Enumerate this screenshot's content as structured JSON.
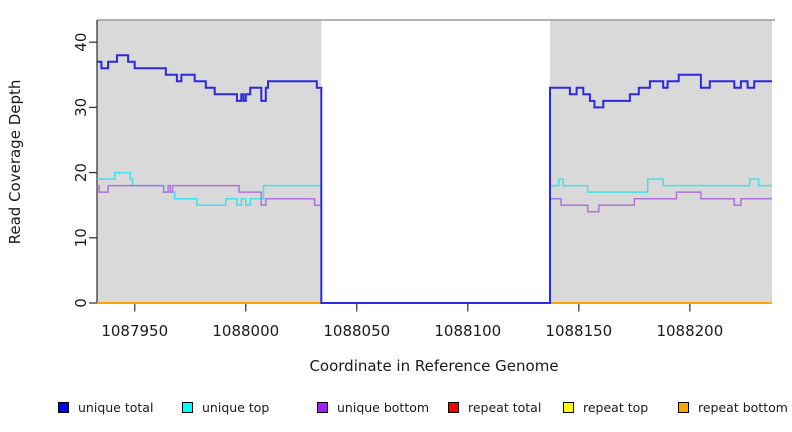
{
  "chart_data": {
    "type": "line",
    "subtype": "step-coverage-plot",
    "title": "",
    "xlabel": "Coordinate in Reference Genome",
    "ylabel": "Read Coverage Depth",
    "xlim": [
      1087933,
      1088237
    ],
    "ylim": [
      0,
      43.4
    ],
    "x_ticks": [
      1087950,
      1088000,
      1088050,
      1088100,
      1088150,
      1088200
    ],
    "y_ticks": [
      0,
      10,
      20,
      30,
      40
    ],
    "grid": "off",
    "colors": {
      "plot_background": "#d9d9d9",
      "gap_background": "#ffffff",
      "top_border": "#9a9a9a",
      "axis": "#2b2b2b",
      "tick_text": "#1a1a1a"
    },
    "background_regions": [
      {
        "name": "covered-region-left",
        "x0": 1087933,
        "x1": 1088034,
        "color": "#d9d9d9"
      },
      {
        "name": "covered-region-right",
        "x0": 1088137,
        "x1": 1088237,
        "color": "#d9d9d9"
      }
    ],
    "gap_region": {
      "x0": 1088034,
      "x1": 1088137,
      "note": "coverage drops to 0, white background"
    },
    "series": [
      {
        "name": "repeat total",
        "color": "#dd0000",
        "width": 1.4,
        "steps": [
          [
            1087933,
            0
          ]
        ],
        "x_end": 1088237
      },
      {
        "name": "repeat top",
        "color": "#ffff00",
        "width": 1.4,
        "steps": [
          [
            1087933,
            0
          ]
        ],
        "x_end": 1088237
      },
      {
        "name": "repeat bottom",
        "color": "#ffa500",
        "width": 2,
        "steps": [
          [
            1087933,
            0
          ]
        ],
        "x_end": 1088237
      },
      {
        "name": "unique top",
        "color": "#3fe2ea",
        "width": 1.5,
        "steps": [
          [
            1087933,
            19
          ],
          [
            1087941,
            20
          ],
          [
            1087948,
            19
          ],
          [
            1087949,
            18
          ],
          [
            1087963,
            17
          ],
          [
            1087968,
            16
          ],
          [
            1087978,
            15
          ],
          [
            1087991,
            16
          ],
          [
            1087996,
            15
          ],
          [
            1087998,
            16
          ],
          [
            1088000,
            15
          ],
          [
            1088002,
            16
          ],
          [
            1088008,
            18
          ],
          [
            1088034,
            0
          ],
          [
            1088137,
            18
          ],
          [
            1088141,
            19
          ],
          [
            1088143,
            18
          ],
          [
            1088154,
            17
          ],
          [
            1088181,
            19
          ],
          [
            1088188,
            18
          ],
          [
            1088227,
            19
          ],
          [
            1088231,
            18
          ]
        ],
        "x_end": 1088237
      },
      {
        "name": "unique bottom",
        "color": "#b072dd",
        "width": 1.5,
        "steps": [
          [
            1087933,
            18
          ],
          [
            1087934,
            17
          ],
          [
            1087938,
            18
          ],
          [
            1087963,
            17
          ],
          [
            1087965,
            18
          ],
          [
            1087966,
            17
          ],
          [
            1087967,
            18
          ],
          [
            1087997,
            17
          ],
          [
            1088007,
            15
          ],
          [
            1088009,
            16
          ],
          [
            1088031,
            15
          ],
          [
            1088034,
            0
          ],
          [
            1088137,
            16
          ],
          [
            1088142,
            15
          ],
          [
            1088154,
            14
          ],
          [
            1088159,
            15
          ],
          [
            1088175,
            16
          ],
          [
            1088194,
            17
          ],
          [
            1088205,
            16
          ],
          [
            1088220,
            15
          ],
          [
            1088223,
            16
          ]
        ],
        "x_end": 1088237
      },
      {
        "name": "unique total",
        "color": "#2a2ae4",
        "width": 2,
        "steps": [
          [
            1087933,
            37
          ],
          [
            1087935,
            36
          ],
          [
            1087938,
            37
          ],
          [
            1087942,
            38
          ],
          [
            1087947,
            37
          ],
          [
            1087950,
            36
          ],
          [
            1087964,
            35
          ],
          [
            1087969,
            34
          ],
          [
            1087971,
            35
          ],
          [
            1087977,
            34
          ],
          [
            1087982,
            33
          ],
          [
            1087986,
            32
          ],
          [
            1087996,
            31
          ],
          [
            1087998,
            32
          ],
          [
            1087999,
            31
          ],
          [
            1088000,
            32
          ],
          [
            1088002,
            33
          ],
          [
            1088007,
            31
          ],
          [
            1088009,
            33
          ],
          [
            1088010,
            34
          ],
          [
            1088032,
            33
          ],
          [
            1088034,
            0
          ],
          [
            1088137,
            33
          ],
          [
            1088146,
            32
          ],
          [
            1088149,
            33
          ],
          [
            1088152,
            32
          ],
          [
            1088155,
            31
          ],
          [
            1088157,
            30
          ],
          [
            1088161,
            31
          ],
          [
            1088173,
            32
          ],
          [
            1088177,
            33
          ],
          [
            1088182,
            34
          ],
          [
            1088188,
            33
          ],
          [
            1088190,
            34
          ],
          [
            1088195,
            35
          ],
          [
            1088205,
            33
          ],
          [
            1088209,
            34
          ],
          [
            1088220,
            33
          ],
          [
            1088223,
            34
          ],
          [
            1088226,
            33
          ],
          [
            1088229,
            34
          ]
        ],
        "x_end": 1088237
      }
    ],
    "legend": {
      "position": "bottom",
      "items": [
        {
          "label": "unique total",
          "color": "#0000ee"
        },
        {
          "label": "unique top",
          "color": "#00ffff"
        },
        {
          "label": "unique bottom",
          "color": "#a020f0"
        },
        {
          "label": "repeat total",
          "color": "#ff0000"
        },
        {
          "label": "repeat top",
          "color": "#ffff00"
        },
        {
          "label": "repeat bottom",
          "color": "#ffa500"
        }
      ]
    }
  }
}
